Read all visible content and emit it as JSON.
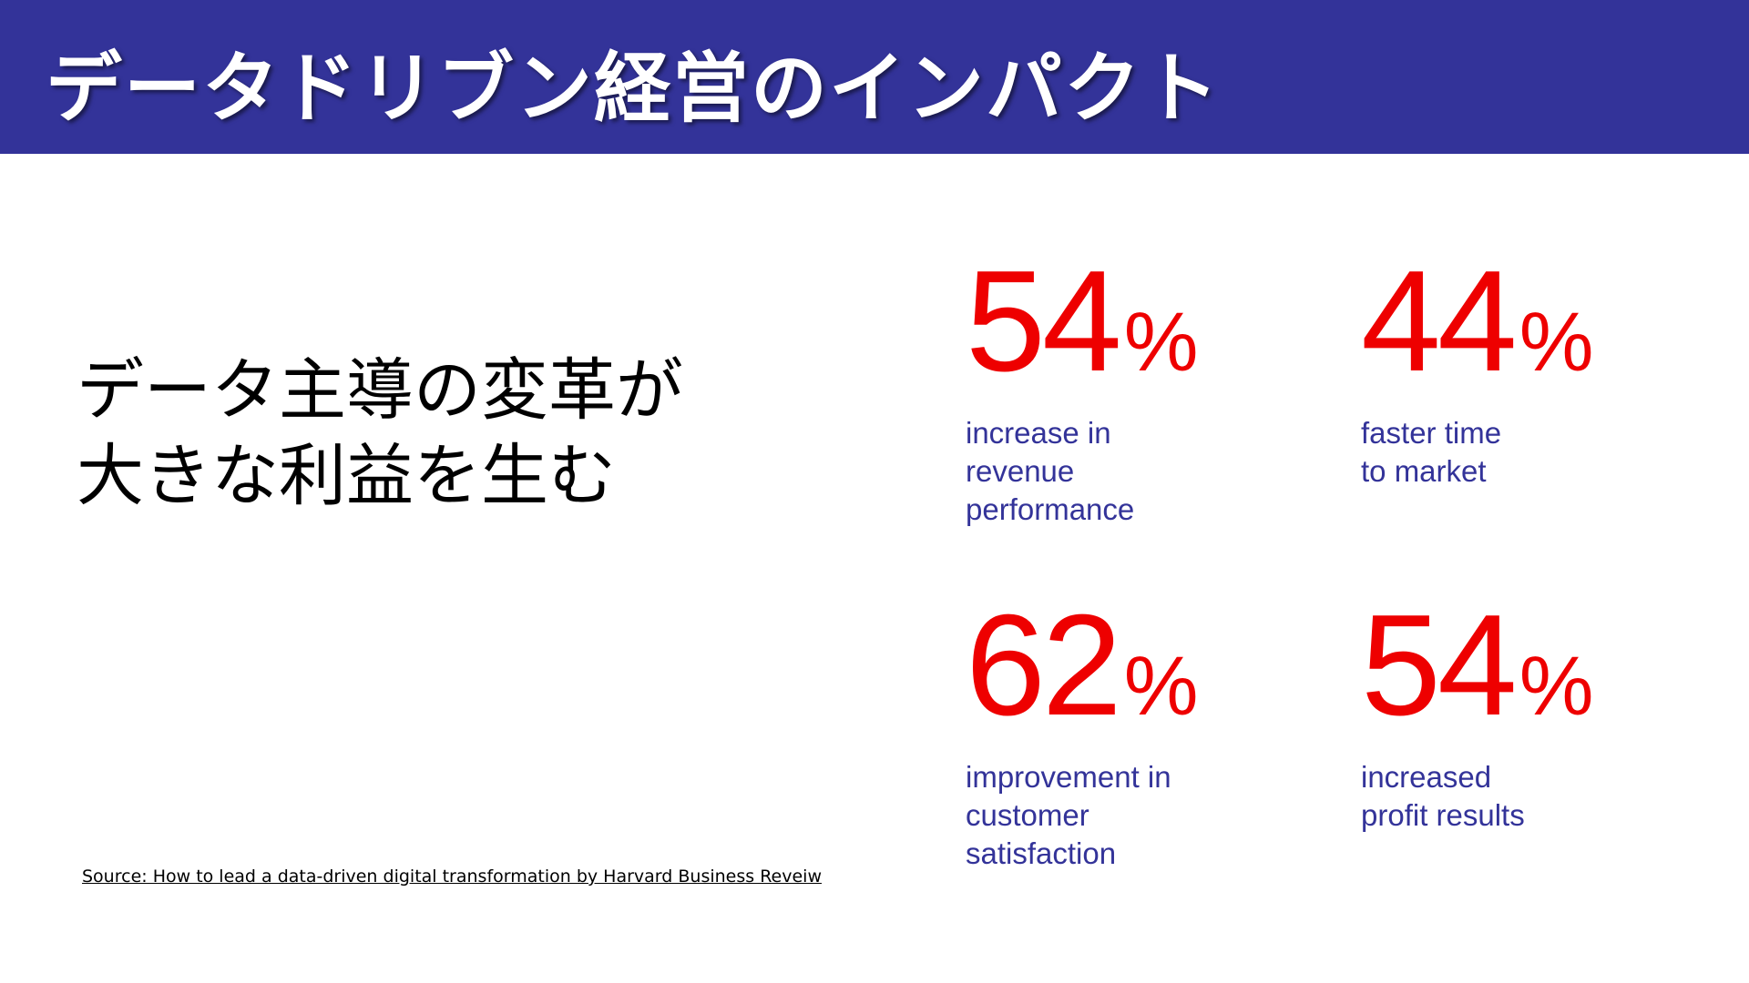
{
  "header": {
    "title": "データドリブン経営のインパクト",
    "background": "#333399"
  },
  "lead": {
    "lines": [
      "データ主導の変革が",
      "大きな利益を生む"
    ]
  },
  "stats": [
    {
      "value": "54",
      "unit": "%",
      "label": [
        "increase in",
        "revenue",
        "performance"
      ]
    },
    {
      "value": "44",
      "unit": "%",
      "label": [
        "faster time",
        "to market"
      ]
    },
    {
      "value": "62",
      "unit": "%",
      "label": [
        "improvement in",
        "customer",
        "satisfaction"
      ]
    },
    {
      "value": "54",
      "unit": "%",
      "label": [
        "increased",
        "profit results"
      ]
    }
  ],
  "colors": {
    "number": "#ee0000",
    "label": "#333399"
  },
  "source": "Source: How to lead a data-driven digital transformation by Harvard Business Reveiw"
}
